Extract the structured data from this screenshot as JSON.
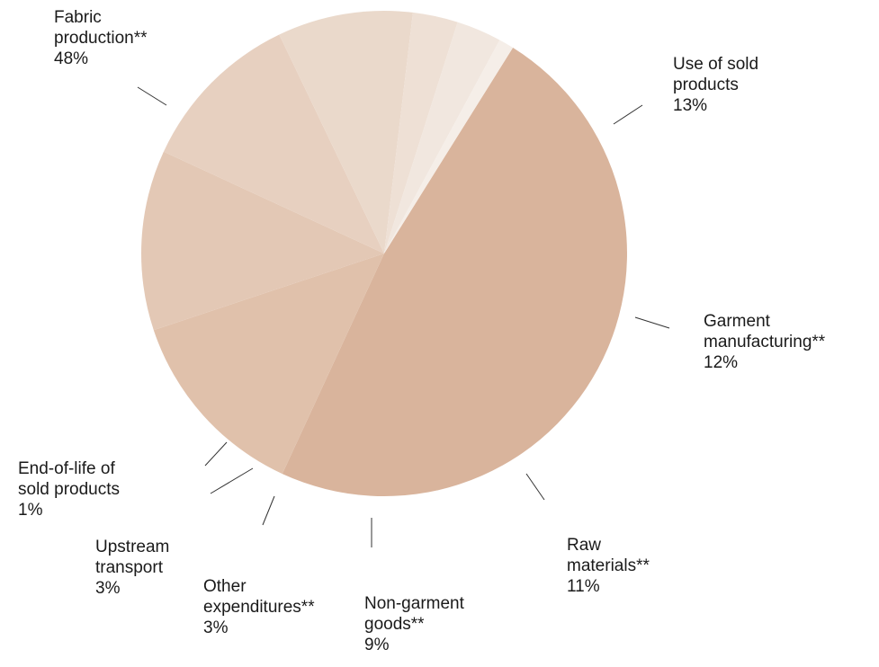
{
  "chart_data": {
    "type": "pie",
    "slices": [
      {
        "key": "fabric",
        "label_lines": [
          "Fabric",
          "production**"
        ],
        "value": 48,
        "value_text": "48",
        "color": "#d9b49c"
      },
      {
        "key": "use",
        "label_lines": [
          "Use of sold",
          "products"
        ],
        "value": 13,
        "value_text": "13",
        "color": "#e0c1ab"
      },
      {
        "key": "garment",
        "label_lines": [
          "Garment",
          "manufacturing**"
        ],
        "value": 12,
        "value_text": "12",
        "color": "#e3c8b5"
      },
      {
        "key": "raw",
        "label_lines": [
          "Raw",
          "materials**"
        ],
        "value": 11,
        "value_text": "11",
        "color": "#e7d0c0"
      },
      {
        "key": "nongarment",
        "label_lines": [
          "Non-garment",
          "goods**"
        ],
        "value": 9,
        "value_text": "9",
        "color": "#ead9cb"
      },
      {
        "key": "other",
        "label_lines": [
          "Other",
          "expenditures**"
        ],
        "value": 3,
        "value_text": "3",
        "color": "#eee0d5"
      },
      {
        "key": "upstream",
        "label_lines": [
          "Upstream",
          "transport"
        ],
        "value": 3,
        "value_text": "3",
        "color": "#f1e7df"
      },
      {
        "key": "eol",
        "label_lines": [
          "End-of-life of",
          "sold products"
        ],
        "value": 1,
        "value_text": "1",
        "color": "#f5eee8"
      }
    ],
    "percent_symbol": "%"
  }
}
